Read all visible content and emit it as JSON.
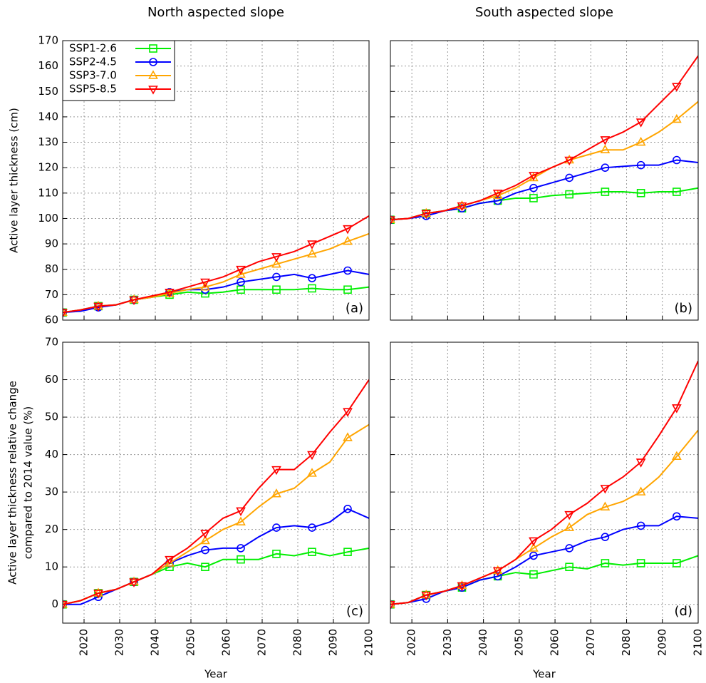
{
  "chart_data": [
    {
      "type": "line",
      "title": "North aspected slope",
      "ylabel": "Active layer thickness (cm)",
      "panel_label": "(a)",
      "legend": "top-left",
      "grid": true,
      "x": [
        2014,
        2019,
        2024,
        2029,
        2034,
        2039,
        2044,
        2049,
        2054,
        2059,
        2064,
        2069,
        2074,
        2079,
        2084,
        2089,
        2094,
        2100
      ],
      "xlim": [
        2014,
        2100
      ],
      "xticks": [
        2020,
        2030,
        2040,
        2050,
        2060,
        2070,
        2080,
        2090,
        2100
      ],
      "ylim": [
        60,
        170
      ],
      "yticks": [
        60,
        70,
        80,
        90,
        100,
        110,
        120,
        130,
        140,
        150,
        160,
        170
      ],
      "series": [
        {
          "name": "SSP1-2.6",
          "color": "#00ee00",
          "marker": "square",
          "values": [
            63,
            64,
            65.5,
            66,
            68,
            69,
            70,
            71,
            70.5,
            71,
            72,
            72,
            72,
            72,
            72.5,
            72,
            72,
            73
          ]
        },
        {
          "name": "SSP2-4.5",
          "color": "#0000ff",
          "marker": "circle",
          "values": [
            63,
            63.5,
            65,
            66,
            68,
            69,
            71,
            72,
            72,
            73,
            75,
            76,
            77,
            78,
            76.5,
            78,
            79.5,
            78
          ]
        },
        {
          "name": "SSP3-7.0",
          "color": "#ffa500",
          "marker": "triangle",
          "values": [
            63,
            64,
            65.5,
            66,
            68,
            69,
            70.5,
            72,
            73,
            75,
            78,
            80,
            82,
            84,
            86,
            88,
            91,
            94
          ]
        },
        {
          "name": "SSP5-8.5",
          "color": "#ff0000",
          "marker": "triangle-down",
          "values": [
            63,
            64,
            65.5,
            66,
            68,
            69.5,
            71,
            73,
            75,
            77,
            80,
            83,
            85,
            87,
            90,
            93,
            96,
            101
          ]
        }
      ]
    },
    {
      "type": "line",
      "title": "South aspected slope",
      "panel_label": "(b)",
      "grid": true,
      "x": [
        2014,
        2019,
        2024,
        2029,
        2034,
        2039,
        2044,
        2049,
        2054,
        2059,
        2064,
        2069,
        2074,
        2079,
        2084,
        2089,
        2094,
        2100
      ],
      "xlim": [
        2014,
        2100
      ],
      "xticks": [
        2020,
        2030,
        2040,
        2050,
        2060,
        2070,
        2080,
        2090,
        2100
      ],
      "ylim": [
        60,
        170
      ],
      "yticks": [
        60,
        70,
        80,
        90,
        100,
        110,
        120,
        130,
        140,
        150,
        160,
        170
      ],
      "series": [
        {
          "color": "#00ee00",
          "marker": "square",
          "values": [
            99.5,
            100,
            102,
            103,
            104,
            106,
            107,
            108,
            108,
            109,
            109.5,
            110,
            110.5,
            110.5,
            110,
            110.5,
            110.5,
            112
          ]
        },
        {
          "color": "#0000ff",
          "marker": "circle",
          "values": [
            99.5,
            100,
            101,
            103,
            104,
            106,
            107,
            110,
            112,
            114,
            116,
            118,
            120,
            120.5,
            121,
            121,
            123,
            122
          ]
        },
        {
          "color": "#ffa500",
          "marker": "triangle",
          "values": [
            99.5,
            100,
            102,
            103,
            105,
            107,
            109,
            112,
            116,
            120,
            123,
            125,
            127,
            127,
            130,
            134,
            139,
            146
          ]
        },
        {
          "color": "#ff0000",
          "marker": "triangle-down",
          "values": [
            99.5,
            100,
            102,
            103,
            105,
            107,
            110,
            113,
            117,
            120,
            123,
            127,
            131,
            134,
            138,
            145,
            152,
            164
          ]
        }
      ]
    },
    {
      "type": "line",
      "ylabel": [
        "Active layer thickness relative change",
        "compared to 2014 value (%)"
      ],
      "xlabel": "Year",
      "panel_label": "(c)",
      "grid": true,
      "x": [
        2014,
        2019,
        2024,
        2029,
        2034,
        2039,
        2044,
        2049,
        2054,
        2059,
        2064,
        2069,
        2074,
        2079,
        2084,
        2089,
        2094,
        2100
      ],
      "xlim": [
        2014,
        2100
      ],
      "xticks": [
        2020,
        2030,
        2040,
        2050,
        2060,
        2070,
        2080,
        2090,
        2100
      ],
      "ylim": [
        -5,
        70
      ],
      "yticks": [
        0,
        10,
        20,
        30,
        40,
        50,
        60,
        70
      ],
      "series": [
        {
          "color": "#00ee00",
          "marker": "square",
          "values": [
            0,
            1,
            3,
            4,
            6,
            8,
            10,
            11,
            10,
            12,
            12,
            12,
            13.5,
            13,
            14,
            13,
            14,
            15
          ]
        },
        {
          "color": "#0000ff",
          "marker": "circle",
          "values": [
            0,
            0,
            2,
            4,
            6,
            8,
            11,
            13,
            14.5,
            15,
            15,
            18,
            20.5,
            21,
            20.5,
            22,
            25.5,
            23
          ]
        },
        {
          "color": "#ffa500",
          "marker": "triangle",
          "values": [
            0,
            1,
            3,
            4,
            6,
            8,
            11,
            14,
            17,
            20,
            22,
            26,
            29.5,
            31,
            35,
            38,
            44.5,
            48
          ]
        },
        {
          "color": "#ff0000",
          "marker": "triangle-down",
          "values": [
            0,
            1,
            3,
            4,
            6,
            8,
            12,
            15,
            19,
            23,
            25,
            31,
            36,
            36,
            40,
            46,
            51.5,
            60
          ]
        }
      ]
    },
    {
      "type": "line",
      "xlabel": "Year",
      "panel_label": "(d)",
      "grid": true,
      "x": [
        2014,
        2019,
        2024,
        2029,
        2034,
        2039,
        2044,
        2049,
        2054,
        2059,
        2064,
        2069,
        2074,
        2079,
        2084,
        2089,
        2094,
        2100
      ],
      "xlim": [
        2014,
        2100
      ],
      "xticks": [
        2020,
        2030,
        2040,
        2050,
        2060,
        2070,
        2080,
        2090,
        2100
      ],
      "ylim": [
        -5,
        70
      ],
      "yticks": [
        0,
        10,
        20,
        30,
        40,
        50,
        60,
        70
      ],
      "series": [
        {
          "color": "#00ee00",
          "marker": "square",
          "values": [
            0,
            0.5,
            2.5,
            3.5,
            4.5,
            6.5,
            7.5,
            8.5,
            8,
            9,
            10,
            9.5,
            11,
            10.5,
            11,
            11,
            11,
            13
          ]
        },
        {
          "color": "#0000ff",
          "marker": "circle",
          "values": [
            0,
            0.5,
            1.5,
            3.5,
            4.5,
            6.5,
            7.5,
            10,
            13,
            14,
            15,
            17,
            18,
            20,
            21,
            21,
            23.5,
            23
          ]
        },
        {
          "color": "#ffa500",
          "marker": "triangle",
          "values": [
            0,
            0.5,
            2.5,
            3.5,
            5,
            7,
            9,
            12,
            15,
            18,
            20.5,
            24,
            26,
            27.5,
            30,
            34,
            39.5,
            46.5
          ]
        },
        {
          "color": "#ff0000",
          "marker": "triangle-down",
          "values": [
            0,
            0.5,
            2.5,
            3.5,
            5,
            7,
            9,
            12,
            17,
            20,
            24,
            27,
            31,
            34,
            38,
            45,
            52.5,
            65
          ]
        }
      ]
    }
  ]
}
